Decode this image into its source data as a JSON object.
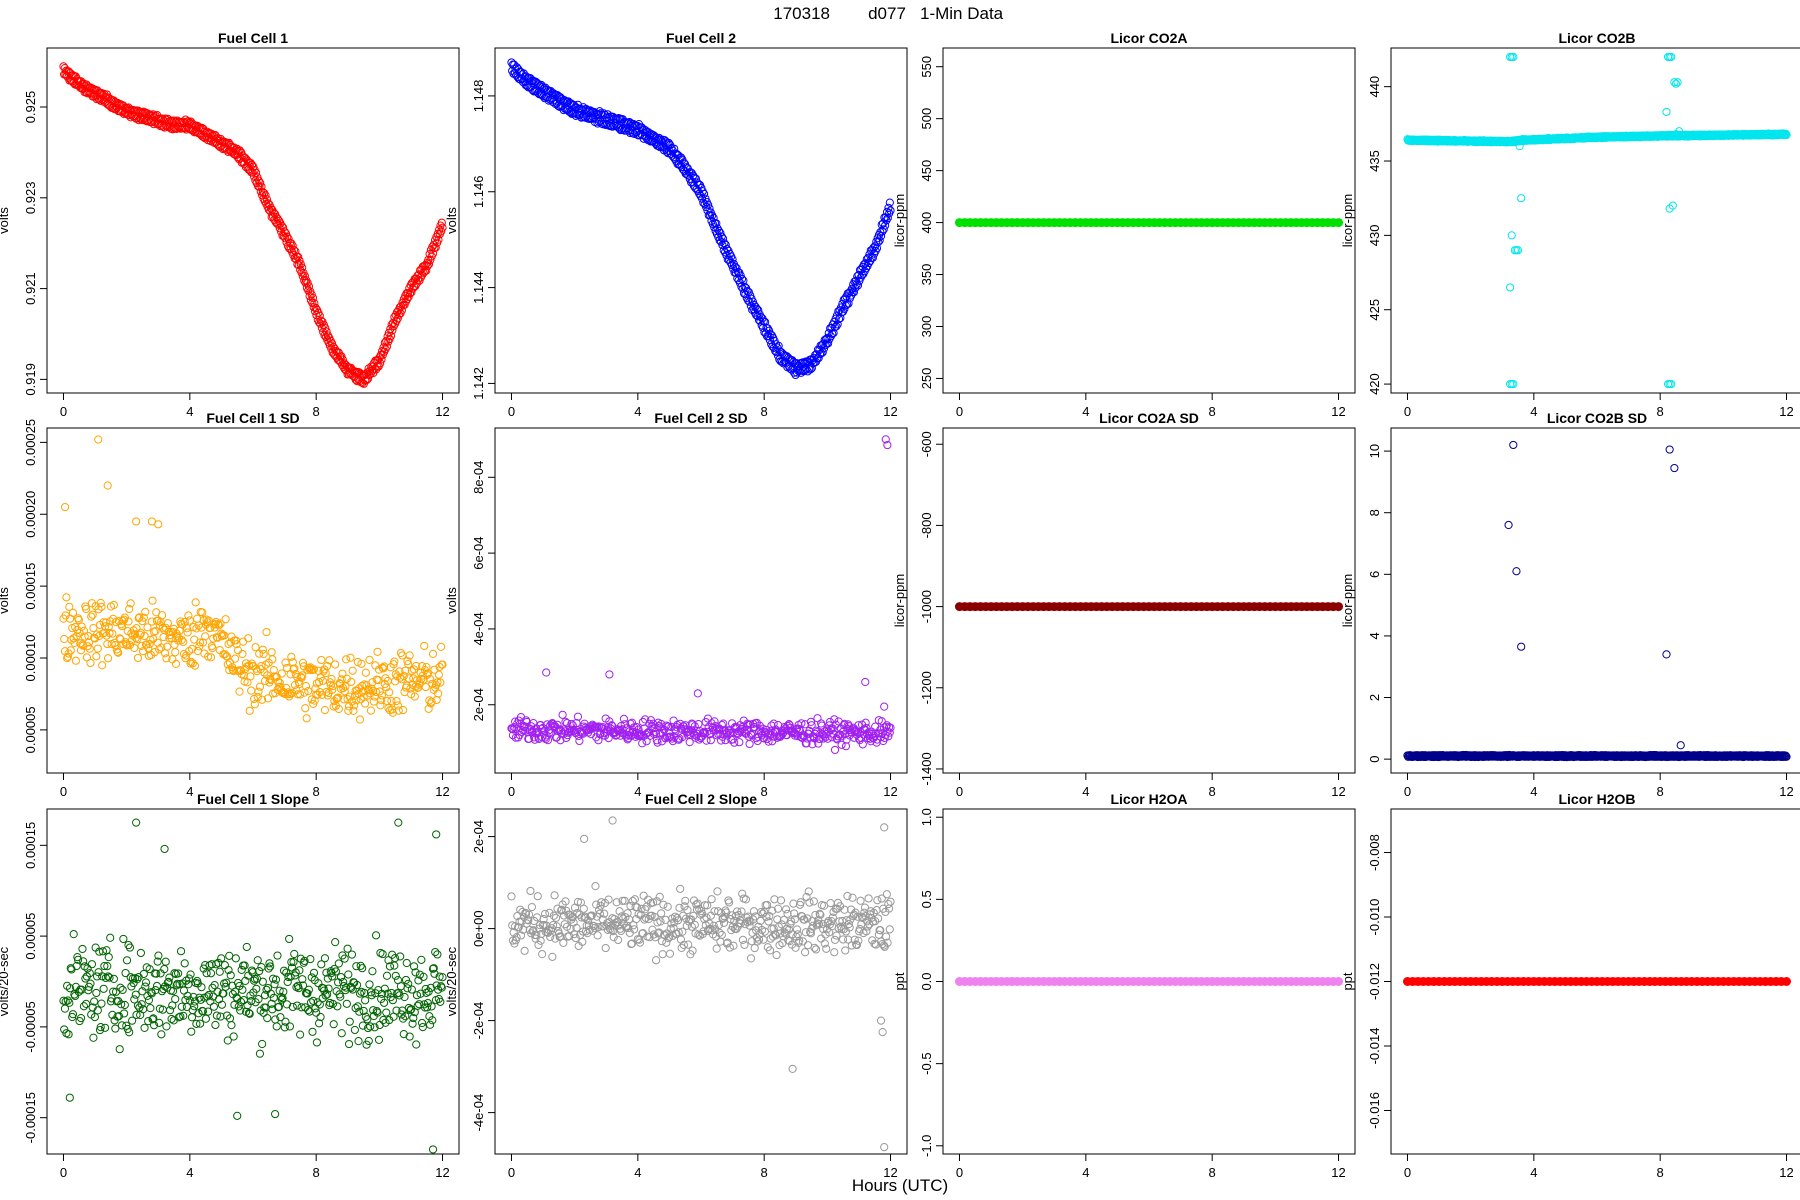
{
  "figure": {
    "title_parts": [
      "170318",
      "d077",
      "1-Min Data"
    ],
    "xlabel": "Hours (UTC)"
  },
  "chart_data": [
    {
      "type": "scatter",
      "title": "Fuel Cell 1",
      "ylabel": "volts",
      "color": "#ff0000",
      "xlim": [
        0,
        12
      ],
      "ylim": [
        0.9187,
        0.9263
      ],
      "xticks": [
        0,
        4,
        8,
        12
      ],
      "yticks": [
        0.919,
        0.921,
        0.923,
        0.925
      ],
      "ytick_labels": [
        "0.919",
        "0.921",
        "0.923",
        "0.925"
      ],
      "series": [
        {
          "x": [
            0,
            0.5,
            1,
            1.5,
            2,
            2.5,
            3,
            3.5,
            4,
            4.5,
            5,
            5.5,
            6,
            6.5,
            7,
            7.5,
            8,
            8.5,
            9,
            9.5,
            10,
            10.5,
            11,
            11.5,
            12
          ],
          "y": [
            0.9258,
            0.9255,
            0.9253,
            0.9251,
            0.9249,
            0.9248,
            0.9247,
            0.9246,
            0.9246,
            0.9244,
            0.9242,
            0.924,
            0.9236,
            0.9228,
            0.9222,
            0.9215,
            0.9205,
            0.9197,
            0.9192,
            0.919,
            0.9194,
            0.9203,
            0.921,
            0.9215,
            0.9224
          ],
          "spread": 0.00014,
          "pattern": "band"
        }
      ]
    },
    {
      "type": "scatter",
      "title": "Fuel Cell 2",
      "ylabel": "volts",
      "color": "#0000ff",
      "xlim": [
        0,
        12
      ],
      "ylim": [
        1.1418,
        1.149
      ],
      "xticks": [
        0,
        4,
        8,
        12
      ],
      "yticks": [
        1.142,
        1.144,
        1.146,
        1.148
      ],
      "ytick_labels": [
        "1.142",
        "1.144",
        "1.146",
        "1.148"
      ],
      "series": [
        {
          "x": [
            0,
            0.5,
            1,
            1.5,
            2,
            2.5,
            3,
            3.5,
            4,
            4.5,
            5,
            5.5,
            6,
            6.5,
            7,
            7.5,
            8,
            8.5,
            9,
            9.5,
            10,
            10.5,
            11,
            11.5,
            12
          ],
          "y": [
            1.1486,
            1.1483,
            1.1481,
            1.1479,
            1.1477,
            1.1476,
            1.1475,
            1.1474,
            1.1473,
            1.1471,
            1.1469,
            1.1465,
            1.146,
            1.1452,
            1.1445,
            1.1438,
            1.1432,
            1.1426,
            1.1423,
            1.1424,
            1.1429,
            1.1436,
            1.1442,
            1.1448,
            1.1457
          ],
          "spread": 0.00016,
          "pattern": "band"
        }
      ]
    },
    {
      "type": "scatter",
      "title": "Licor CO2A",
      "ylabel": "licor-ppm",
      "color": "#00e000",
      "xlim": [
        0,
        12
      ],
      "ylim": [
        236,
        568
      ],
      "xticks": [
        0,
        4,
        8,
        12
      ],
      "yticks": [
        250,
        300,
        350,
        400,
        450,
        500,
        550
      ],
      "ytick_labels": [
        "250",
        "300",
        "350",
        "400",
        "450",
        "500",
        "550"
      ],
      "series": [
        {
          "x": [
            0,
            12
          ],
          "y": [
            400,
            400
          ],
          "spread": 0,
          "pattern": "flat"
        }
      ]
    },
    {
      "type": "scatter",
      "title": "Licor CO2B",
      "ylabel": "licor-ppm",
      "color": "#00e5ee",
      "xlim": [
        0,
        12
      ],
      "ylim": [
        419.4,
        442.6
      ],
      "xticks": [
        0,
        4,
        8,
        12
      ],
      "yticks": [
        420,
        425,
        430,
        435,
        440
      ],
      "ytick_labels": [
        "420",
        "425",
        "430",
        "435",
        "440"
      ],
      "series": [
        {
          "x": [
            0,
            3.3,
            3.6,
            6,
            8.3,
            8.6,
            12
          ],
          "y": [
            436.4,
            436.3,
            436.4,
            436.6,
            436.7,
            436.7,
            436.8
          ],
          "spread": 0.08,
          "pattern": "band"
        }
      ],
      "outliers": {
        "x": [
          3.25,
          3.3,
          3.35,
          3.25,
          3.3,
          3.35,
          3.4,
          3.45,
          3.5,
          3.3,
          3.25,
          3.6,
          3.55,
          8.25,
          8.3,
          8.35,
          8.25,
          8.3,
          8.35,
          8.45,
          8.5,
          8.55,
          8.2,
          8.3,
          8.4,
          8.6,
          8.5
        ],
        "y": [
          442,
          442,
          442,
          420,
          420,
          420,
          429,
          429,
          429,
          430,
          426.5,
          432.5,
          436,
          442,
          442,
          442,
          420,
          420,
          420,
          440.3,
          440.2,
          440.3,
          438.3,
          431.8,
          432,
          437,
          436.8
        ]
      }
    },
    {
      "type": "scatter",
      "title": "Fuel Cell 1 SD",
      "ylabel": "volts",
      "color": "#ffa500",
      "xlim": [
        0,
        12
      ],
      "ylim": [
        2e-05,
        0.00026
      ],
      "xticks": [
        0,
        4,
        8,
        12
      ],
      "yticks": [
        5e-05,
        0.0001,
        0.00015,
        0.0002,
        0.00025
      ],
      "ytick_labels": [
        "0.00005",
        "0.00010",
        "0.00015",
        "0.00020",
        "0.00025"
      ],
      "series": [
        {
          "x": [
            0,
            2,
            4,
            4.5,
            5,
            5.5,
            6,
            8,
            10,
            12
          ],
          "y": [
            0.00012,
            0.000118,
            0.000112,
            0.000125,
            0.00011,
            9.5e-05,
            9e-05,
            8e-05,
            8.2e-05,
            8.5e-05
          ],
          "spread": 2.2e-05,
          "pattern": "noise"
        }
      ],
      "outliers": {
        "x": [
          0.05,
          1.1,
          1.4,
          2.3,
          2.8,
          3
        ],
        "y": [
          0.000205,
          0.000252,
          0.00022,
          0.000195,
          0.000195,
          0.000193
        ]
      }
    },
    {
      "type": "scatter",
      "title": "Fuel Cell 2 SD",
      "ylabel": "volts",
      "color": "#a020f0",
      "xlim": [
        0,
        12
      ],
      "ylim": [
        2e-05,
        0.00093
      ],
      "xticks": [
        0,
        4,
        8,
        12
      ],
      "yticks": [
        0.0002,
        0.0004,
        0.0006,
        0.0008
      ],
      "ytick_labels": [
        "2e-04",
        "4e-04",
        "6e-04",
        "8e-04"
      ],
      "series": [
        {
          "x": [
            0,
            12
          ],
          "y": [
            0.000135,
            0.000125
          ],
          "spread": 3e-05,
          "pattern": "noise"
        }
      ],
      "outliers": {
        "x": [
          1.1,
          3.1,
          5.9,
          11.2,
          11.8,
          11.85,
          11.9
        ],
        "y": [
          0.000285,
          0.00028,
          0.00023,
          0.00026,
          0.000195,
          0.0009,
          0.000885
        ]
      }
    },
    {
      "type": "scatter",
      "title": "Licor CO2A SD",
      "ylabel": "licor-ppm",
      "color": "#8b0000",
      "xlim": [
        0,
        12
      ],
      "ylim": [
        -1410,
        -560
      ],
      "xticks": [
        0,
        4,
        8,
        12
      ],
      "yticks": [
        -1400,
        -1200,
        -1000,
        -800,
        -600
      ],
      "ytick_labels": [
        "-1400",
        "-1200",
        "-1000",
        "-800",
        "-600"
      ],
      "series": [
        {
          "x": [
            0,
            12
          ],
          "y": [
            -1000,
            -1000
          ],
          "spread": 0,
          "pattern": "flat"
        }
      ]
    },
    {
      "type": "scatter",
      "title": "Licor CO2B SD",
      "ylabel": "licor-ppm",
      "color": "#00008b",
      "xlim": [
        0,
        12
      ],
      "ylim": [
        -0.45,
        10.75
      ],
      "xticks": [
        0,
        4,
        8,
        12
      ],
      "yticks": [
        0,
        2,
        4,
        6,
        8,
        10
      ],
      "ytick_labels": [
        "0",
        "2",
        "4",
        "6",
        "8",
        "10"
      ],
      "series": [
        {
          "x": [
            0,
            12
          ],
          "y": [
            0.1,
            0.1
          ],
          "spread": 0.04,
          "pattern": "band"
        }
      ],
      "outliers": {
        "x": [
          3.2,
          3.35,
          3.45,
          3.6,
          8.2,
          8.3,
          8.45,
          8.65
        ],
        "y": [
          7.6,
          10.2,
          6.1,
          3.65,
          3.4,
          10.05,
          9.45,
          0.45
        ]
      }
    },
    {
      "type": "scatter",
      "title": "Fuel Cell 1 Slope",
      "ylabel": "volts/20-sec",
      "color": "#006400",
      "xlim": [
        0,
        12
      ],
      "ylim": [
        -0.00019,
        0.00019
      ],
      "xticks": [
        0,
        4,
        8,
        12
      ],
      "yticks": [
        -0.00015,
        -5e-05,
        5e-05,
        0.00015
      ],
      "ytick_labels": [
        "-0.00015",
        "-0.00005",
        "0.00005",
        "0.00015"
      ],
      "series": [
        {
          "x": [
            0,
            12
          ],
          "y": [
            -1e-05,
            -1e-05
          ],
          "spread": 5e-05,
          "pattern": "noise"
        }
      ],
      "outliers": {
        "x": [
          2.3,
          10.6,
          11.8,
          11.7,
          3.2,
          5.5,
          6.7,
          0.2
        ],
        "y": [
          0.000175,
          0.000175,
          0.000162,
          -0.000185,
          0.000146,
          -0.000148,
          -0.000146,
          -0.000128
        ]
      }
    },
    {
      "type": "scatter",
      "title": "Fuel Cell 2 Slope",
      "ylabel": "volts/20-sec",
      "color": "#999999",
      "xlim": [
        0,
        12
      ],
      "ylim": [
        -0.00049,
        0.00026
      ],
      "xticks": [
        0,
        4,
        8,
        12
      ],
      "yticks": [
        -0.0004,
        -0.0002,
        0,
        0.0002
      ],
      "ytick_labels": [
        "-4e-04",
        "-2e-04",
        "0e+00",
        "2e-04"
      ],
      "series": [
        {
          "x": [
            0,
            12
          ],
          "y": [
            1e-05,
            1e-05
          ],
          "spread": 6e-05,
          "pattern": "noise"
        }
      ],
      "outliers": {
        "x": [
          3.2,
          2.3,
          11.8,
          11.7,
          11.75,
          8.9,
          11.8
        ],
        "y": [
          0.000235,
          0.000195,
          0.00022,
          -0.0002,
          -0.000225,
          -0.000305,
          -0.000475
        ]
      }
    },
    {
      "type": "scatter",
      "title": "Licor H2OA",
      "ylabel": "ppt",
      "color": "#ee82ee",
      "xlim": [
        0,
        12
      ],
      "ylim": [
        -1.05,
        1.05
      ],
      "xticks": [
        0,
        4,
        8,
        12
      ],
      "yticks": [
        -1,
        -0.5,
        0,
        0.5,
        1
      ],
      "ytick_labels": [
        "-1.0",
        "-0.5",
        "0.0",
        "0.5",
        "1.0"
      ],
      "series": [
        {
          "x": [
            0,
            12
          ],
          "y": [
            0,
            0
          ],
          "spread": 0,
          "pattern": "flat"
        }
      ]
    },
    {
      "type": "scatter",
      "title": "Licor H2OB",
      "ylabel": "ppt",
      "color": "#ff0000",
      "xlim": [
        0,
        12
      ],
      "ylim": [
        -0.01735,
        -0.00665
      ],
      "xticks": [
        0,
        4,
        8,
        12
      ],
      "yticks": [
        -0.016,
        -0.014,
        -0.012,
        -0.01,
        -0.008
      ],
      "ytick_labels": [
        "-0.016",
        "-0.014",
        "-0.012",
        "-0.010",
        "-0.008"
      ],
      "series": [
        {
          "x": [
            0,
            12
          ],
          "y": [
            -0.012,
            -0.012
          ],
          "spread": 0,
          "pattern": "flat"
        }
      ]
    }
  ]
}
